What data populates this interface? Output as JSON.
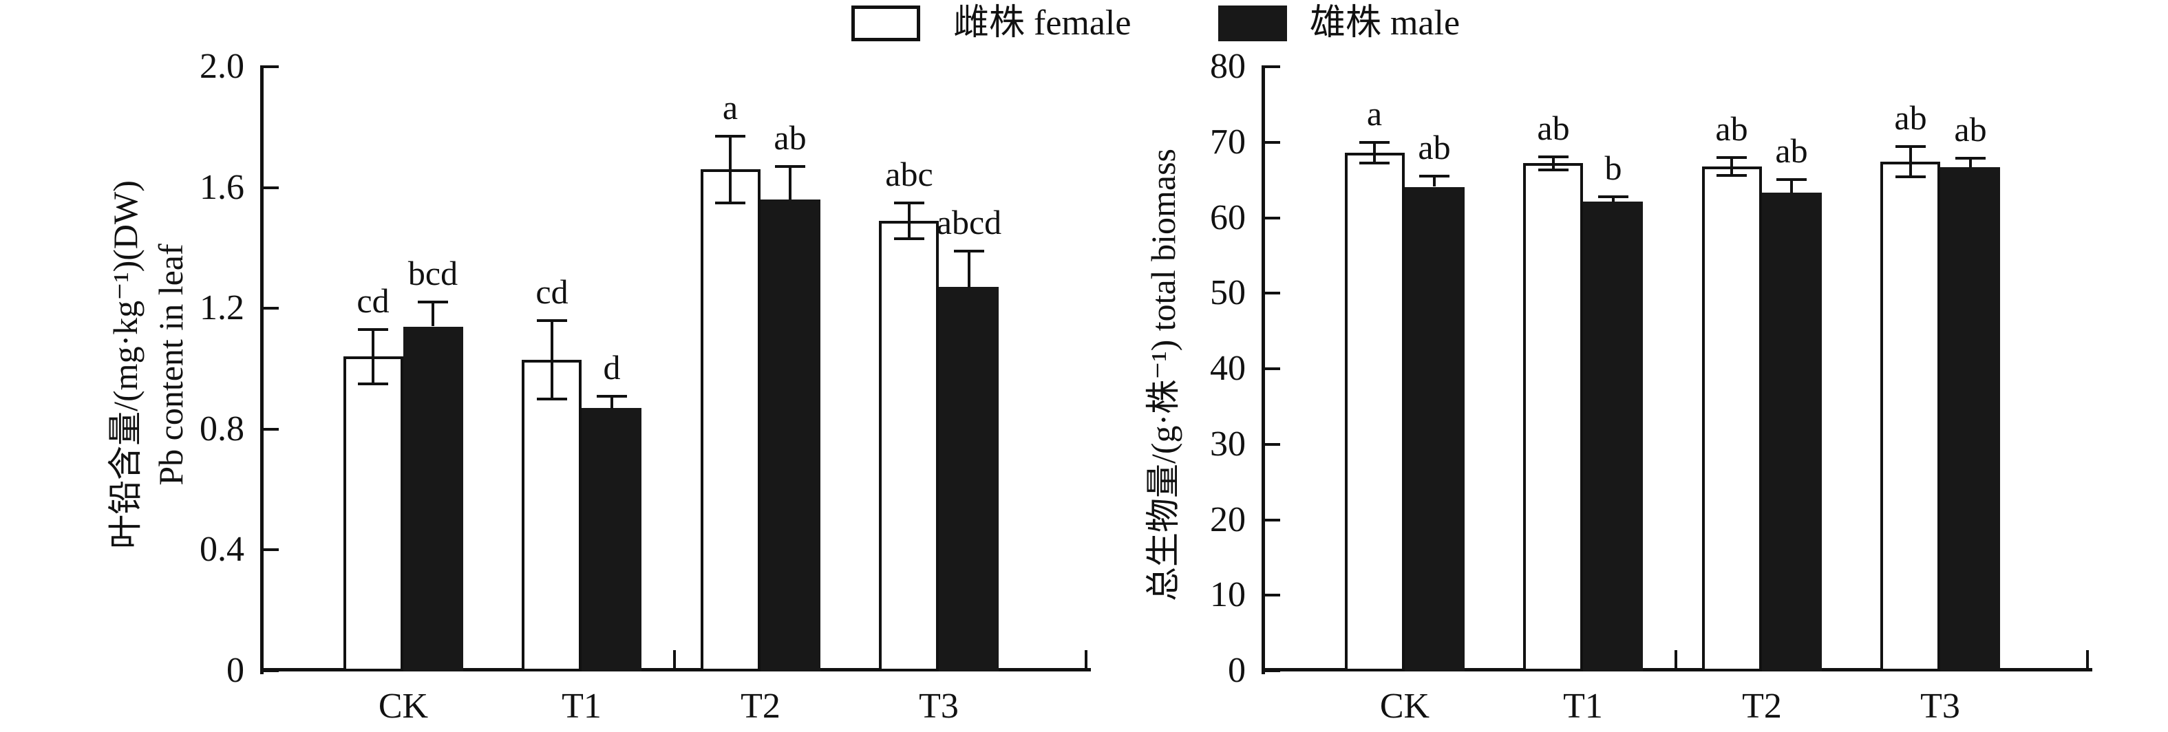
{
  "figure": {
    "legend": {
      "female_label": "雌株 female",
      "male_label": "雄株 male"
    },
    "colors": {
      "ink": "#111111",
      "background": "#ffffff",
      "female_fill": "#ffffff",
      "male_fill": "#181818"
    }
  },
  "chart_data": [
    {
      "type": "bar",
      "panel": "left",
      "ylabel_line1": "叶铅含量/(mg·kg⁻¹)(DW)",
      "ylabel_line2": "Pb content in leaf",
      "ylim": [
        0,
        2.0
      ],
      "ytick_labels": [
        "2.0",
        "1.6",
        "1.2",
        "0.8",
        "0.4",
        "0"
      ],
      "grid": false,
      "categories": [
        "CK",
        "T1",
        "T2",
        "T3"
      ],
      "series": [
        {
          "name": "雌株 female",
          "fill": "white",
          "values": [
            1.04,
            1.03,
            1.66,
            1.49
          ],
          "errors": [
            0.09,
            0.13,
            0.11,
            0.06
          ],
          "sig_letters": [
            "cd",
            "cd",
            "a",
            "abc"
          ]
        },
        {
          "name": "雄株 male",
          "fill": "black",
          "values": [
            1.14,
            0.87,
            1.56,
            1.27
          ],
          "errors": [
            0.08,
            0.04,
            0.11,
            0.12
          ],
          "sig_letters": [
            "bcd",
            "d",
            "ab",
            "abcd"
          ]
        }
      ]
    },
    {
      "type": "bar",
      "panel": "right",
      "ylabel_line1": "总生物量/(g·株⁻¹) total biomass",
      "ylabel_line2": "",
      "ylim": [
        0,
        80
      ],
      "ytick_labels": [
        "80",
        "70",
        "60",
        "50",
        "40",
        "30",
        "20",
        "10",
        "0"
      ],
      "grid": false,
      "categories": [
        "CK",
        "T1",
        "T2",
        "T3"
      ],
      "series": [
        {
          "name": "雌株 female",
          "fill": "white",
          "values": [
            68.6,
            67.2,
            66.8,
            67.4
          ],
          "errors": [
            1.4,
            0.9,
            1.2,
            2.0
          ],
          "sig_letters": [
            "a",
            "ab",
            "ab",
            "ab"
          ]
        },
        {
          "name": "雄株 male",
          "fill": "black",
          "values": [
            64.1,
            62.1,
            63.3,
            66.7
          ],
          "errors": [
            1.4,
            0.7,
            1.8,
            1.2
          ],
          "sig_letters": [
            "ab",
            "b",
            "ab",
            "ab"
          ]
        }
      ]
    }
  ]
}
